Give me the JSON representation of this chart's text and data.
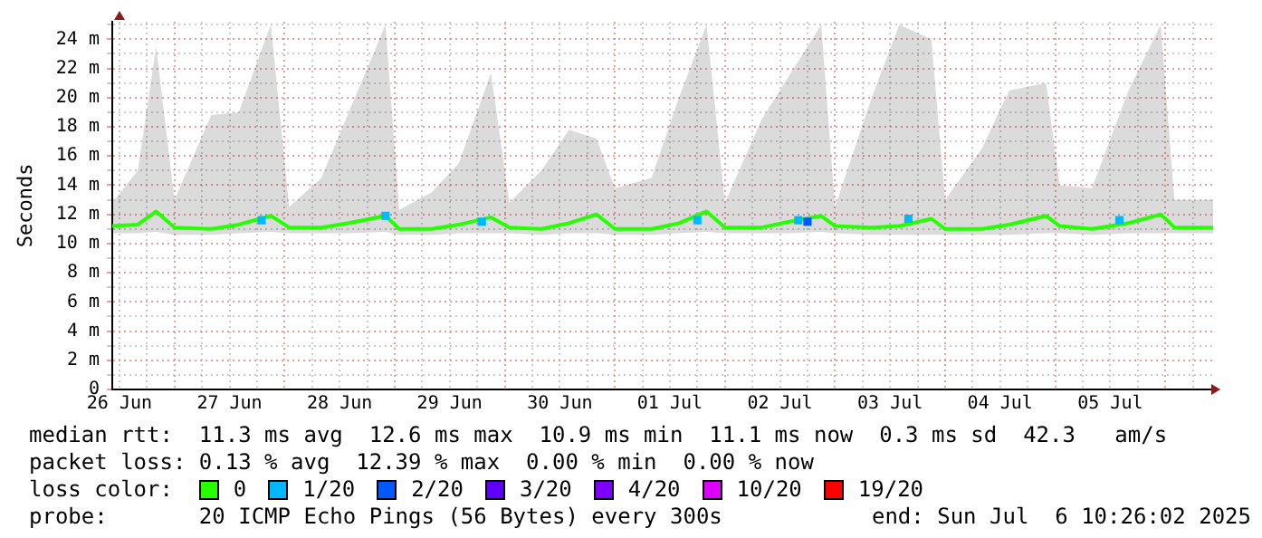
{
  "chart_data": {
    "type": "line",
    "ylabel": "Seconds",
    "legend_title": "loss color:",
    "legend": "bottom",
    "grid": true,
    "xlim": [
      "2025-06-26T10:26",
      "2025-07-06T10:26"
    ],
    "xticks": [
      {
        "value": "2025-06-26T12:00",
        "label": "26 Jun"
      },
      {
        "value": "2025-06-26T18:00",
        "label": null
      },
      {
        "value": "2025-06-27T00:00",
        "label": null
      },
      {
        "value": "2025-06-27T06:00",
        "label": null
      },
      {
        "value": "2025-06-27T12:00",
        "label": "27 Jun"
      },
      {
        "value": "2025-06-27T18:00",
        "label": null
      },
      {
        "value": "2025-06-28T00:00",
        "label": null
      },
      {
        "value": "2025-06-28T06:00",
        "label": null
      },
      {
        "value": "2025-06-28T12:00",
        "label": "28 Jun"
      },
      {
        "value": "2025-06-28T18:00",
        "label": null
      },
      {
        "value": "2025-06-29T00:00",
        "label": null
      },
      {
        "value": "2025-06-29T06:00",
        "label": null
      },
      {
        "value": "2025-06-29T12:00",
        "label": "29 Jun"
      },
      {
        "value": "2025-06-29T18:00",
        "label": null
      },
      {
        "value": "2025-06-30T00:00",
        "label": null
      },
      {
        "value": "2025-06-30T06:00",
        "label": null
      },
      {
        "value": "2025-06-30T12:00",
        "label": "30 Jun"
      },
      {
        "value": "2025-06-30T18:00",
        "label": null
      },
      {
        "value": "2025-07-01T00:00",
        "label": null
      },
      {
        "value": "2025-07-01T06:00",
        "label": null
      },
      {
        "value": "2025-07-01T12:00",
        "label": "01 Jul"
      },
      {
        "value": "2025-07-01T18:00",
        "label": null
      },
      {
        "value": "2025-07-02T00:00",
        "label": null
      },
      {
        "value": "2025-07-02T06:00",
        "label": null
      },
      {
        "value": "2025-07-02T12:00",
        "label": "02 Jul"
      },
      {
        "value": "2025-07-02T18:00",
        "label": null
      },
      {
        "value": "2025-07-03T00:00",
        "label": null
      },
      {
        "value": "2025-07-03T06:00",
        "label": null
      },
      {
        "value": "2025-07-03T12:00",
        "label": "03 Jul"
      },
      {
        "value": "2025-07-03T18:00",
        "label": null
      },
      {
        "value": "2025-07-04T00:00",
        "label": null
      },
      {
        "value": "2025-07-04T06:00",
        "label": null
      },
      {
        "value": "2025-07-04T12:00",
        "label": "04 Jul"
      },
      {
        "value": "2025-07-04T18:00",
        "label": null
      },
      {
        "value": "2025-07-05T00:00",
        "label": null
      },
      {
        "value": "2025-07-05T06:00",
        "label": null
      },
      {
        "value": "2025-07-05T12:00",
        "label": "05 Jul"
      },
      {
        "value": "2025-07-05T18:00",
        "label": null
      },
      {
        "value": "2025-07-06T00:00",
        "label": null
      },
      {
        "value": "2025-07-06T06:00",
        "label": null
      }
    ],
    "ylim": [
      0,
      25.2
    ],
    "yticks": [
      0,
      {
        "value": 1,
        "label": null
      },
      {
        "value": 2,
        "label": "2 m"
      },
      {
        "value": 3,
        "label": null
      },
      {
        "value": 4,
        "label": "4 m"
      },
      {
        "value": 5,
        "label": null
      },
      {
        "value": 6,
        "label": "6 m"
      },
      {
        "value": 7,
        "label": null
      },
      {
        "value": 8,
        "label": "8 m"
      },
      {
        "value": 9,
        "label": null
      },
      {
        "value": 10,
        "label": "10 m"
      },
      {
        "value": 11,
        "label": null
      },
      {
        "value": 12,
        "label": "12 m"
      },
      {
        "value": 13,
        "label": null
      },
      {
        "value": 14,
        "label": "14 m"
      },
      {
        "value": 15,
        "label": null
      },
      {
        "value": 16,
        "label": "16 m"
      },
      {
        "value": 17,
        "label": null
      },
      {
        "value": 18,
        "label": "18 m"
      },
      {
        "value": 19,
        "label": null
      },
      {
        "value": 20,
        "label": "20 m"
      },
      {
        "value": 21,
        "label": null
      },
      {
        "value": 22,
        "label": "22 m"
      },
      {
        "value": 23,
        "label": null
      },
      {
        "value": 24,
        "label": "24 m"
      },
      {
        "value": 25,
        "label": null
      }
    ],
    "series": [
      {
        "name": "0",
        "color": "#26ff00",
        "x": [
          "2025-06-26T10:26",
          "2025-06-26T16:00",
          "2025-06-26T20:00",
          "2025-06-27T00:00",
          "2025-06-27T08:00",
          "2025-06-27T14:00",
          "2025-06-27T21:00",
          "2025-06-28T01:00",
          "2025-06-28T08:00",
          "2025-06-28T14:00",
          "2025-06-28T22:00",
          "2025-06-29T01:00",
          "2025-06-29T08:00",
          "2025-06-29T14:00",
          "2025-06-29T21:00",
          "2025-06-30T01:00",
          "2025-06-30T08:00",
          "2025-06-30T14:00",
          "2025-06-30T20:00",
          "2025-07-01T00:00",
          "2025-07-01T08:00",
          "2025-07-01T14:00",
          "2025-07-01T20:00",
          "2025-07-02T00:00",
          "2025-07-02T08:00",
          "2025-07-02T14:00",
          "2025-07-02T21:00",
          "2025-07-03T00:00",
          "2025-07-03T08:00",
          "2025-07-03T14:00",
          "2025-07-03T21:00",
          "2025-07-04T00:00",
          "2025-07-04T08:00",
          "2025-07-04T14:00",
          "2025-07-04T22:00",
          "2025-07-05T01:00",
          "2025-07-05T08:00",
          "2025-07-05T16:00",
          "2025-07-05T23:00",
          "2025-07-06T02:00",
          "2025-07-06T10:26"
        ],
        "values": [
          11.2,
          11.3,
          12.2,
          11.1,
          11.0,
          11.3,
          11.9,
          11.1,
          11.1,
          11.4,
          11.9,
          11.0,
          11.0,
          11.3,
          11.8,
          11.1,
          11.0,
          11.4,
          12.0,
          11.0,
          11.0,
          11.4,
          12.2,
          11.1,
          11.1,
          11.5,
          11.9,
          11.2,
          11.1,
          11.2,
          11.7,
          11.0,
          11.0,
          11.3,
          11.9,
          11.2,
          11.0,
          11.4,
          12.0,
          11.1,
          11.1
        ],
        "lower": [
          10.7,
          10.7,
          10.8,
          10.6,
          10.6,
          10.7,
          10.8,
          10.7,
          10.7,
          10.7,
          10.8,
          10.6,
          10.6,
          10.7,
          10.7,
          10.7,
          10.6,
          10.7,
          10.7,
          10.6,
          10.6,
          10.7,
          10.8,
          10.7,
          10.7,
          10.7,
          10.8,
          10.7,
          10.6,
          10.6,
          10.6,
          10.6,
          10.6,
          10.6,
          10.7,
          10.7,
          10.6,
          10.7,
          10.7,
          10.7,
          10.7
        ],
        "upper": [
          12.8,
          15.0,
          23.5,
          13.0,
          18.8,
          19.0,
          25.0,
          12.5,
          14.5,
          19.0,
          25.0,
          12.3,
          13.5,
          15.5,
          21.7,
          12.8,
          15.0,
          17.8,
          17.2,
          13.8,
          14.5,
          20.0,
          25.0,
          12.8,
          18.5,
          21.5,
          25.0,
          12.5,
          20.0,
          25.0,
          24.0,
          13.0,
          16.5,
          20.5,
          21.0,
          14.0,
          13.8,
          20.5,
          25.0,
          13.0,
          13.0
        ]
      },
      {
        "name": "1/20",
        "color": "#00b8ff",
        "type": "scatter",
        "x": [
          "2025-06-27T19:00",
          "2025-06-28T22:00",
          "2025-06-29T19:00",
          "2025-07-01T18:00",
          "2025-07-02T16:00",
          "2025-07-03T16:00",
          "2025-07-05T14:00"
        ],
        "values": [
          11.6,
          11.9,
          11.5,
          11.6,
          11.6,
          11.7,
          11.6
        ]
      },
      {
        "name": "2/20",
        "color": "#0059ff",
        "type": "scatter",
        "x": [
          "2025-07-02T18:00"
        ],
        "values": [
          11.5
        ]
      },
      {
        "name": "3/20",
        "color": "#5e00ff",
        "type": "scatter"
      },
      {
        "name": "4/20",
        "color": "#7e00ff",
        "type": "scatter"
      },
      {
        "name": "10/20",
        "color": "#dd00ff",
        "type": "scatter"
      },
      {
        "name": "19/20",
        "color": "#ff0000",
        "type": "scatter"
      }
    ],
    "annotations": [
      "median rtt:  11.3 ms avg  12.6 ms max  10.9 ms min  11.1 ms now  0.3 ms sd  42.3   am/s",
      "packet loss: 0.13 % avg  12.39 % max  0.00 % min  0.00 % now",
      "probe:       20 ICMP Echo Pings (56 Bytes) every 300s",
      "end: Sun Jul  6 10:26:02 2025"
    ]
  }
}
